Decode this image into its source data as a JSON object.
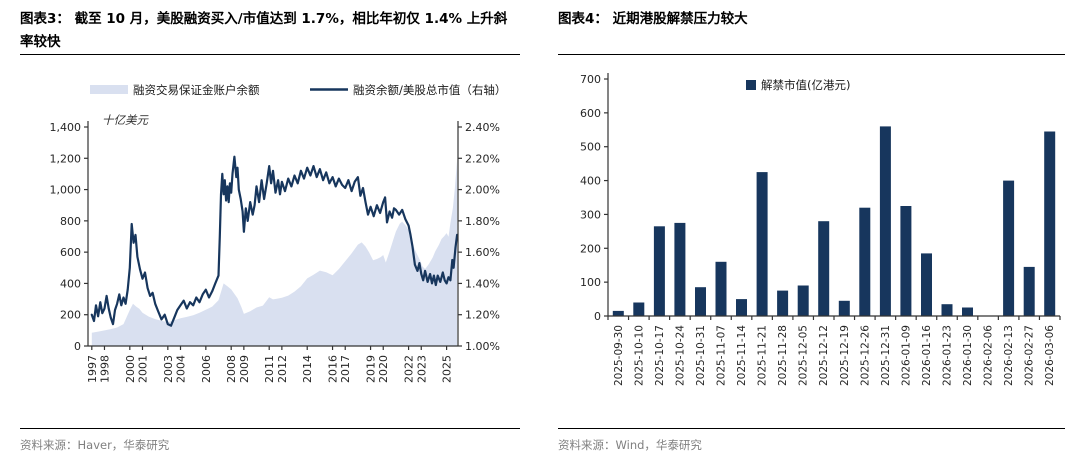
{
  "colors": {
    "navy": "#17365D",
    "area_fill": "#D9E0F0",
    "axis": "#333333",
    "tick_label": "#262626",
    "source_gray": "#808080"
  },
  "left_panel": {
    "title": "图表3：  截至 10 月，美股融资买入/市值达到 1.7%，相比年初仅 1.4% 上升斜率较快",
    "source": "资料来源：Haver，华泰研究"
  },
  "right_panel": {
    "title": "图表4：  近期港股解禁压力较大",
    "source": "资料来源：Wind，华泰研究"
  },
  "chart_data": [
    {
      "type": "line",
      "title": "美股融资买入/市值",
      "unit_label": "十亿美元",
      "x_range": [
        1996.7,
        2025.9
      ],
      "x_ticks": [
        1997,
        1998,
        2000,
        2001,
        2003,
        2004,
        2006,
        2008,
        2009,
        2011,
        2012,
        2014,
        2016,
        2017,
        2019,
        2020,
        2022,
        2023,
        2025
      ],
      "left_axis": {
        "min": 0,
        "max": 1400,
        "step": 200
      },
      "right_axis": {
        "min": 1.0,
        "max": 2.4,
        "step": 0.2,
        "format": "percent"
      },
      "grid": false,
      "legend_position": "top",
      "series": [
        {
          "name": "融资交易保证金账户余额",
          "type": "area",
          "axis": "left",
          "points": [
            [
              1997.0,
              85
            ],
            [
              1997.5,
              92
            ],
            [
              1998.0,
              100
            ],
            [
              1998.5,
              108
            ],
            [
              1999.0,
              118
            ],
            [
              1999.5,
              140
            ],
            [
              2000.0,
              230
            ],
            [
              2000.25,
              270
            ],
            [
              2000.5,
              252
            ],
            [
              2000.75,
              238
            ],
            [
              2001.0,
              212
            ],
            [
              2001.5,
              188
            ],
            [
              2002.0,
              172
            ],
            [
              2002.5,
              162
            ],
            [
              2003.0,
              152
            ],
            [
              2003.5,
              164
            ],
            [
              2004.0,
              178
            ],
            [
              2004.5,
              186
            ],
            [
              2005.0,
              196
            ],
            [
              2005.5,
              212
            ],
            [
              2006.0,
              232
            ],
            [
              2006.5,
              252
            ],
            [
              2007.0,
              292
            ],
            [
              2007.4,
              400
            ],
            [
              2007.7,
              382
            ],
            [
              2008.0,
              362
            ],
            [
              2008.5,
              305
            ],
            [
              2008.8,
              250
            ],
            [
              2009.0,
              205
            ],
            [
              2009.5,
              222
            ],
            [
              2010.0,
              246
            ],
            [
              2010.5,
              258
            ],
            [
              2011.0,
              312
            ],
            [
              2011.3,
              298
            ],
            [
              2011.6,
              302
            ],
            [
              2012.0,
              308
            ],
            [
              2012.5,
              322
            ],
            [
              2013.0,
              348
            ],
            [
              2013.5,
              382
            ],
            [
              2014.0,
              432
            ],
            [
              2014.5,
              456
            ],
            [
              2015.0,
              482
            ],
            [
              2015.5,
              472
            ],
            [
              2016.0,
              452
            ],
            [
              2016.5,
              492
            ],
            [
              2017.0,
              542
            ],
            [
              2017.5,
              592
            ],
            [
              2018.0,
              648
            ],
            [
              2018.3,
              662
            ],
            [
              2018.6,
              636
            ],
            [
              2018.9,
              596
            ],
            [
              2019.2,
              548
            ],
            [
              2019.5,
              556
            ],
            [
              2019.8,
              568
            ],
            [
              2020.0,
              582
            ],
            [
              2020.2,
              534
            ],
            [
              2020.5,
              605
            ],
            [
              2020.8,
              682
            ],
            [
              2021.0,
              732
            ],
            [
              2021.3,
              782
            ],
            [
              2021.5,
              795
            ],
            [
              2021.8,
              768
            ],
            [
              2022.0,
              740
            ],
            [
              2022.3,
              655
            ],
            [
              2022.6,
              598
            ],
            [
              2022.9,
              548
            ],
            [
              2023.1,
              508
            ],
            [
              2023.3,
              492
            ],
            [
              2023.6,
              524
            ],
            [
              2023.9,
              566
            ],
            [
              2024.1,
              604
            ],
            [
              2024.4,
              648
            ],
            [
              2024.6,
              684
            ],
            [
              2024.8,
              702
            ],
            [
              2025.0,
              722
            ],
            [
              2025.15,
              698
            ],
            [
              2025.3,
              786
            ],
            [
              2025.5,
              884
            ],
            [
              2025.65,
              1005
            ],
            [
              2025.83,
              1190
            ]
          ]
        },
        {
          "name": "融资余额/美股总市值（右轴）",
          "type": "line",
          "axis": "right",
          "points": [
            [
              1997.0,
              1.2
            ],
            [
              1997.17,
              1.16
            ],
            [
              1997.33,
              1.26
            ],
            [
              1997.5,
              1.19
            ],
            [
              1997.67,
              1.28
            ],
            [
              1997.83,
              1.21
            ],
            [
              1998.0,
              1.24
            ],
            [
              1998.17,
              1.32
            ],
            [
              1998.33,
              1.24
            ],
            [
              1998.5,
              1.18
            ],
            [
              1998.67,
              1.14
            ],
            [
              1998.83,
              1.23
            ],
            [
              1999.0,
              1.27
            ],
            [
              1999.17,
              1.33
            ],
            [
              1999.33,
              1.26
            ],
            [
              1999.5,
              1.31
            ],
            [
              1999.67,
              1.27
            ],
            [
              1999.83,
              1.36
            ],
            [
              2000.0,
              1.5
            ],
            [
              2000.15,
              1.78
            ],
            [
              2000.3,
              1.66
            ],
            [
              2000.45,
              1.71
            ],
            [
              2000.6,
              1.57
            ],
            [
              2000.8,
              1.49
            ],
            [
              2001.0,
              1.43
            ],
            [
              2001.2,
              1.47
            ],
            [
              2001.4,
              1.37
            ],
            [
              2001.6,
              1.32
            ],
            [
              2001.8,
              1.34
            ],
            [
              2002.0,
              1.27
            ],
            [
              2002.25,
              1.22
            ],
            [
              2002.5,
              1.17
            ],
            [
              2002.75,
              1.2
            ],
            [
              2003.0,
              1.14
            ],
            [
              2003.25,
              1.13
            ],
            [
              2003.5,
              1.18
            ],
            [
              2003.75,
              1.23
            ],
            [
              2004.0,
              1.26
            ],
            [
              2004.25,
              1.29
            ],
            [
              2004.5,
              1.24
            ],
            [
              2004.75,
              1.28
            ],
            [
              2005.0,
              1.26
            ],
            [
              2005.25,
              1.31
            ],
            [
              2005.5,
              1.28
            ],
            [
              2005.75,
              1.33
            ],
            [
              2006.0,
              1.36
            ],
            [
              2006.25,
              1.31
            ],
            [
              2006.5,
              1.35
            ],
            [
              2006.75,
              1.4
            ],
            [
              2007.0,
              1.45
            ],
            [
              2007.1,
              1.7
            ],
            [
              2007.2,
              1.97
            ],
            [
              2007.3,
              2.1
            ],
            [
              2007.4,
              1.97
            ],
            [
              2007.5,
              2.06
            ],
            [
              2007.6,
              1.93
            ],
            [
              2007.7,
              2.02
            ],
            [
              2007.8,
              1.92
            ],
            [
              2007.9,
              2.04
            ],
            [
              2008.0,
              1.98
            ],
            [
              2008.1,
              2.1
            ],
            [
              2008.25,
              2.21
            ],
            [
              2008.4,
              2.08
            ],
            [
              2008.5,
              2.14
            ],
            [
              2008.6,
              2.0
            ],
            [
              2008.75,
              1.94
            ],
            [
              2008.9,
              1.86
            ],
            [
              2009.0,
              1.73
            ],
            [
              2009.15,
              1.88
            ],
            [
              2009.3,
              1.8
            ],
            [
              2009.5,
              1.92
            ],
            [
              2009.7,
              1.84
            ],
            [
              2009.85,
              1.9
            ],
            [
              2010.0,
              2.02
            ],
            [
              2010.2,
              1.92
            ],
            [
              2010.4,
              2.06
            ],
            [
              2010.6,
              1.94
            ],
            [
              2010.8,
              2.04
            ],
            [
              2011.0,
              2.15
            ],
            [
              2011.15,
              2.04
            ],
            [
              2011.3,
              2.12
            ],
            [
              2011.5,
              1.98
            ],
            [
              2011.7,
              2.06
            ],
            [
              2011.85,
              1.97
            ],
            [
              2012.0,
              2.05
            ],
            [
              2012.25,
              1.99
            ],
            [
              2012.5,
              2.07
            ],
            [
              2012.75,
              2.02
            ],
            [
              2013.0,
              2.09
            ],
            [
              2013.25,
              2.04
            ],
            [
              2013.5,
              2.12
            ],
            [
              2013.75,
              2.07
            ],
            [
              2014.0,
              2.14
            ],
            [
              2014.25,
              2.09
            ],
            [
              2014.5,
              2.15
            ],
            [
              2014.75,
              2.08
            ],
            [
              2015.0,
              2.13
            ],
            [
              2015.25,
              2.06
            ],
            [
              2015.5,
              2.11
            ],
            [
              2015.75,
              2.04
            ],
            [
              2016.0,
              2.08
            ],
            [
              2016.25,
              2.02
            ],
            [
              2016.5,
              2.07
            ],
            [
              2016.75,
              2.03
            ],
            [
              2017.0,
              2.01
            ],
            [
              2017.25,
              2.06
            ],
            [
              2017.5,
              1.99
            ],
            [
              2017.75,
              2.05
            ],
            [
              2018.0,
              2.08
            ],
            [
              2018.2,
              1.96
            ],
            [
              2018.4,
              2.01
            ],
            [
              2018.6,
              1.92
            ],
            [
              2018.8,
              1.84
            ],
            [
              2019.0,
              1.89
            ],
            [
              2019.25,
              1.83
            ],
            [
              2019.5,
              1.9
            ],
            [
              2019.75,
              1.85
            ],
            [
              2020.0,
              1.92
            ],
            [
              2020.15,
              1.95
            ],
            [
              2020.3,
              1.79
            ],
            [
              2020.5,
              1.86
            ],
            [
              2020.7,
              1.82
            ],
            [
              2020.85,
              1.88
            ],
            [
              2021.0,
              1.87
            ],
            [
              2021.25,
              1.84
            ],
            [
              2021.5,
              1.87
            ],
            [
              2021.75,
              1.81
            ],
            [
              2022.0,
              1.77
            ],
            [
              2022.15,
              1.71
            ],
            [
              2022.3,
              1.64
            ],
            [
              2022.5,
              1.52
            ],
            [
              2022.7,
              1.48
            ],
            [
              2022.85,
              1.53
            ],
            [
              2023.0,
              1.46
            ],
            [
              2023.15,
              1.42
            ],
            [
              2023.3,
              1.48
            ],
            [
              2023.5,
              1.41
            ],
            [
              2023.7,
              1.46
            ],
            [
              2023.85,
              1.4
            ],
            [
              2024.0,
              1.45
            ],
            [
              2024.15,
              1.39
            ],
            [
              2024.3,
              1.45
            ],
            [
              2024.5,
              1.41
            ],
            [
              2024.7,
              1.47
            ],
            [
              2024.85,
              1.42
            ],
            [
              2025.0,
              1.4
            ],
            [
              2025.15,
              1.44
            ],
            [
              2025.3,
              1.42
            ],
            [
              2025.45,
              1.55
            ],
            [
              2025.55,
              1.5
            ],
            [
              2025.7,
              1.63
            ],
            [
              2025.83,
              1.71
            ]
          ]
        }
      ]
    },
    {
      "type": "bar",
      "title": "近期港股解禁压力较大",
      "legend": "解禁市值(亿港元)",
      "categories": [
        "2025-09-30",
        "2025-10-10",
        "2025-10-17",
        "2025-10-24",
        "2025-10-31",
        "2025-11-07",
        "2025-11-14",
        "2025-11-21",
        "2025-11-28",
        "2025-12-05",
        "2025-12-12",
        "2025-12-19",
        "2025-12-26",
        "2025-12-31",
        "2026-01-09",
        "2026-01-16",
        "2026-01-23",
        "2026-01-30",
        "2026-02-06",
        "2026-02-13",
        "2026-02-27",
        "2026-03-06"
      ],
      "values": [
        15,
        40,
        265,
        275,
        85,
        160,
        50,
        425,
        75,
        90,
        280,
        45,
        320,
        560,
        325,
        185,
        35,
        25,
        0,
        400,
        145,
        545
      ],
      "ylim": [
        0,
        700
      ],
      "ystep": 100,
      "grid": false,
      "legend_position": "top"
    }
  ]
}
